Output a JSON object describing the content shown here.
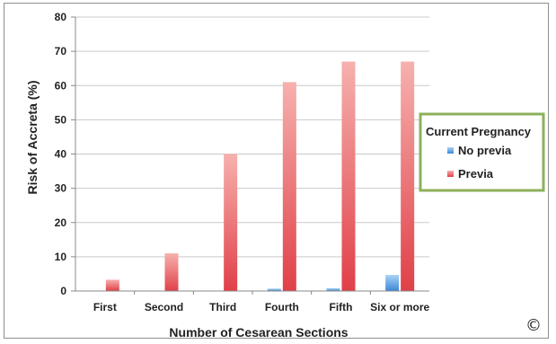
{
  "chart_data": {
    "type": "bar",
    "categories": [
      "First",
      "Second",
      "Third",
      "Fourth",
      "Fifth",
      "Six or more"
    ],
    "series": [
      {
        "name": "No previa",
        "values": [
          0,
          0,
          0,
          0.7,
          0.8,
          4.7
        ],
        "color": "#4a90d9"
      },
      {
        "name": "Previa",
        "values": [
          3.3,
          11,
          40,
          61,
          67,
          67
        ],
        "color": "#e3484c"
      }
    ],
    "xlabel": "Number of Cesarean Sections",
    "ylabel": "Risk of Accreta (%)",
    "ylim": [
      0,
      80
    ],
    "yticks": [
      "0",
      "10",
      "20",
      "30",
      "40",
      "50",
      "60",
      "70",
      "80"
    ],
    "grid": true,
    "legend": {
      "title": "Current Pregnancy",
      "position": "right",
      "border_color": "#8db05a"
    }
  },
  "copyright_symbol": "©"
}
